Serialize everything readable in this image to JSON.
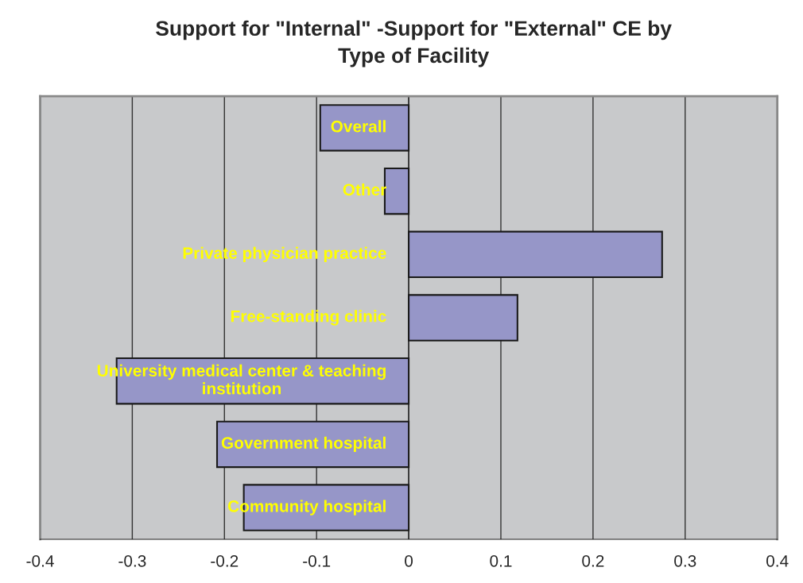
{
  "chart_data": {
    "type": "bar",
    "orientation": "horizontal",
    "title": "Support for \"Internal\" -Support for \"External\" CE by\nType of Facility",
    "categories": [
      "Overall",
      "Other",
      "Private physician practice",
      "Free-standing clinic",
      "University medical center & teaching\ninstitution",
      "Government hospital",
      "Community hospital"
    ],
    "values": [
      -0.096,
      -0.026,
      0.275,
      0.118,
      -0.317,
      -0.208,
      -0.179
    ],
    "color": "#9696c8",
    "xlim": [
      -0.4,
      0.4
    ],
    "xticks": [
      -0.4,
      -0.3,
      -0.2,
      -0.1,
      0,
      0.1,
      0.2,
      0.3,
      0.4
    ],
    "grid": "x",
    "tick_labels": "x",
    "legend": false
  }
}
